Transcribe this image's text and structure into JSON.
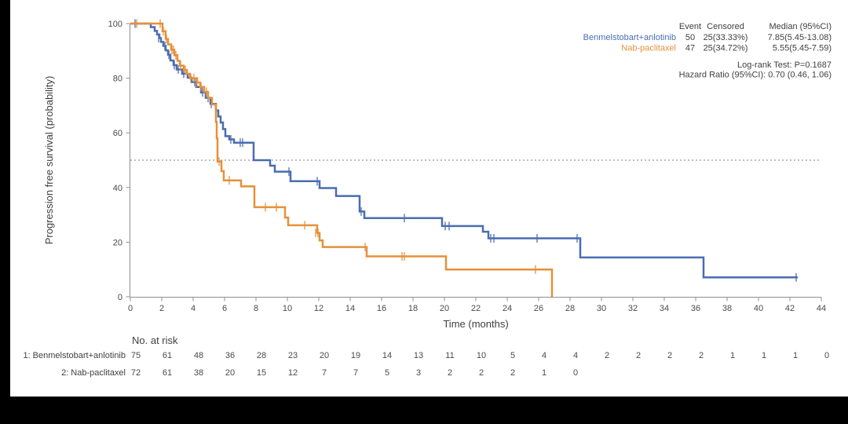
{
  "page": {
    "background": "#000000",
    "panel_background": "#ffffff",
    "text_color": "#3f3f3f",
    "axis_color": "#8f8f8f",
    "tick_text_color": "#4a4a4a"
  },
  "chart_data": {
    "type": "line",
    "subtype": "kaplan-meier-step",
    "title": "",
    "xlabel": "Time (months)",
    "ylabel": "Progression free survival (probability)",
    "xlim": [
      0,
      44
    ],
    "ylim": [
      0,
      100
    ],
    "xticks": [
      0,
      2,
      4,
      6,
      8,
      10,
      12,
      14,
      16,
      18,
      20,
      22,
      24,
      26,
      28,
      30,
      32,
      34,
      36,
      38,
      40,
      42,
      44
    ],
    "yticks": [
      0,
      20,
      40,
      60,
      80,
      100
    ],
    "grid": false,
    "reference_line_y": 50,
    "reference_line_style": "dotted",
    "series": [
      {
        "name": "Benmelstobart+anlotinib",
        "color": "#4a6db1",
        "end_t": 42.5,
        "steps": [
          [
            0,
            100
          ],
          [
            1.3,
            98.7
          ],
          [
            1.55,
            97.3
          ],
          [
            1.7,
            96
          ],
          [
            1.85,
            94.7
          ],
          [
            1.95,
            93.3
          ],
          [
            2.1,
            91.8
          ],
          [
            2.25,
            90.2
          ],
          [
            2.4,
            88.6
          ],
          [
            2.55,
            86.5
          ],
          [
            2.75,
            84.8
          ],
          [
            2.95,
            83.2
          ],
          [
            3.3,
            81.6
          ],
          [
            3.65,
            80.2
          ],
          [
            3.9,
            78.6
          ],
          [
            4.2,
            76.8
          ],
          [
            4.5,
            74.8
          ],
          [
            4.8,
            72.8
          ],
          [
            5.1,
            70.6
          ],
          [
            5.45,
            68.2
          ],
          [
            5.6,
            66
          ],
          [
            5.75,
            63.8
          ],
          [
            5.9,
            61.4
          ],
          [
            6.05,
            58.8
          ],
          [
            6.3,
            57.6
          ],
          [
            6.6,
            56.4
          ],
          [
            7.85,
            50
          ],
          [
            8.9,
            48
          ],
          [
            9.2,
            45.8
          ],
          [
            10.2,
            42.3
          ],
          [
            12.05,
            39.8
          ],
          [
            13.1,
            36.9
          ],
          [
            14.6,
            31.2
          ],
          [
            14.9,
            28.8
          ],
          [
            19.85,
            25.9
          ],
          [
            22.45,
            23.8
          ],
          [
            22.8,
            21.4
          ],
          [
            28.65,
            14.4
          ],
          [
            36.5,
            7.1
          ]
        ],
        "censors": [
          [
            0.3,
            100
          ],
          [
            1.8,
            94.7
          ],
          [
            2.2,
            91.8
          ],
          [
            2.45,
            88.6
          ],
          [
            2.8,
            84.8
          ],
          [
            3.05,
            83.2
          ],
          [
            3.4,
            81.6
          ],
          [
            4.1,
            78.6
          ],
          [
            4.6,
            74.8
          ],
          [
            4.95,
            72.8
          ],
          [
            5.15,
            70.6
          ],
          [
            6.4,
            57.6
          ],
          [
            7.0,
            56.4
          ],
          [
            7.15,
            56.4
          ],
          [
            10.1,
            45.8
          ],
          [
            11.9,
            42.3
          ],
          [
            14.7,
            31.2
          ],
          [
            17.45,
            28.8
          ],
          [
            20.05,
            25.9
          ],
          [
            20.3,
            25.9
          ],
          [
            22.95,
            21.4
          ],
          [
            23.15,
            21.4
          ],
          [
            25.9,
            21.4
          ],
          [
            28.45,
            21.4
          ],
          [
            42.4,
            7.1
          ]
        ]
      },
      {
        "name": "Nab-paclitaxel",
        "color": "#e5913a",
        "end_t": 26.85,
        "steps": [
          [
            0,
            100
          ],
          [
            2.05,
            97.2
          ],
          [
            2.25,
            94.4
          ],
          [
            2.4,
            92.4
          ],
          [
            2.6,
            90.4
          ],
          [
            2.8,
            88.4
          ],
          [
            3.0,
            86.4
          ],
          [
            3.15,
            84.6
          ],
          [
            3.4,
            83
          ],
          [
            3.6,
            81.6
          ],
          [
            3.8,
            80
          ],
          [
            4.25,
            78.4
          ],
          [
            4.45,
            76.8
          ],
          [
            4.7,
            75
          ],
          [
            4.95,
            72.8
          ],
          [
            5.2,
            70.4
          ],
          [
            5.45,
            64
          ],
          [
            5.5,
            58
          ],
          [
            5.55,
            49.5
          ],
          [
            5.8,
            46
          ],
          [
            5.95,
            42.6
          ],
          [
            7.05,
            40.4
          ],
          [
            7.9,
            32.8
          ],
          [
            9.85,
            29
          ],
          [
            10.05,
            26.2
          ],
          [
            11.9,
            23.4
          ],
          [
            12.05,
            20.6
          ],
          [
            12.25,
            18.2
          ],
          [
            15.05,
            14.8
          ],
          [
            20.1,
            10
          ],
          [
            26.85,
            0
          ]
        ],
        "censors": [
          [
            0.4,
            100
          ],
          [
            1.9,
            100
          ],
          [
            2.1,
            97.2
          ],
          [
            2.3,
            94.4
          ],
          [
            2.65,
            90.4
          ],
          [
            2.75,
            90.4
          ],
          [
            2.9,
            88.4
          ],
          [
            3.2,
            84.6
          ],
          [
            3.5,
            83
          ],
          [
            3.85,
            80
          ],
          [
            4.05,
            80
          ],
          [
            4.2,
            78.4
          ],
          [
            4.5,
            76.8
          ],
          [
            4.85,
            75
          ],
          [
            5.65,
            49.5
          ],
          [
            6.3,
            42.6
          ],
          [
            8.6,
            32.8
          ],
          [
            9.3,
            32.8
          ],
          [
            11.1,
            26.2
          ],
          [
            11.8,
            23.4
          ],
          [
            11.95,
            23.4
          ],
          [
            14.95,
            18.2
          ],
          [
            17.3,
            14.8
          ],
          [
            17.45,
            14.8
          ],
          [
            25.8,
            10
          ]
        ]
      }
    ],
    "legend": {
      "position": "top-right",
      "headers": [
        "Event",
        "Censored",
        "Median (95%CI)"
      ],
      "rows": [
        {
          "label": "Benmelstobart+anlotinib",
          "event": "50",
          "censored": "25(33.33%)",
          "median": "7.85(5.45-13.08)"
        },
        {
          "label": "Nab-paclitaxel",
          "event": "47",
          "censored": "25(34.72%)",
          "median": "5.55(5.45-7.59)"
        }
      ],
      "stats": [
        "Log-rank Test: P=0.1687",
        "Hazard Ratio (95%CI): 0.70 (0.46, 1.06)"
      ]
    },
    "risk_table": {
      "title": "No. at risk",
      "rows": [
        {
          "label": "1: Benmelstobart+anlotinib",
          "values": [
            75,
            61,
            48,
            36,
            28,
            23,
            20,
            19,
            14,
            13,
            11,
            10,
            5,
            4,
            4,
            2,
            2,
            2,
            2,
            1,
            1,
            1,
            0
          ]
        },
        {
          "label": "2: Nab-paclitaxel",
          "values": [
            72,
            61,
            38,
            20,
            15,
            12,
            7,
            7,
            5,
            3,
            2,
            2,
            2,
            1,
            0
          ]
        }
      ]
    }
  }
}
